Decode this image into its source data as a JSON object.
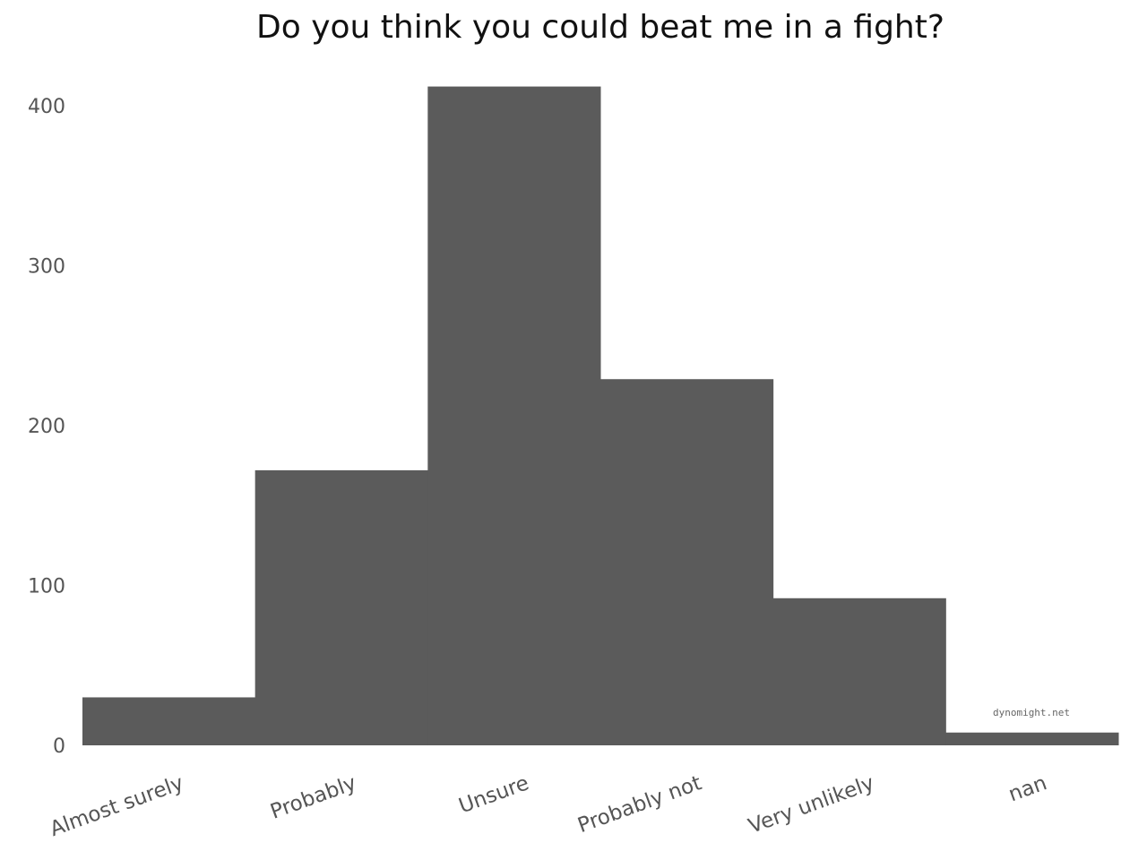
{
  "chart_data": {
    "type": "bar",
    "title": "Do you think you could beat me in a fight?",
    "xlabel": "",
    "ylabel": "",
    "categories": [
      "Almost surely",
      "Probably",
      "Unsure",
      "Probably not",
      "Very unlikely",
      "nan"
    ],
    "values": [
      30,
      172,
      412,
      229,
      92,
      8
    ],
    "ylim": [
      0,
      420
    ],
    "yticks": [
      0,
      100,
      200,
      300,
      400
    ],
    "grid": false,
    "bar_color": "#5b5b5b",
    "watermark": "dynomight.net"
  }
}
